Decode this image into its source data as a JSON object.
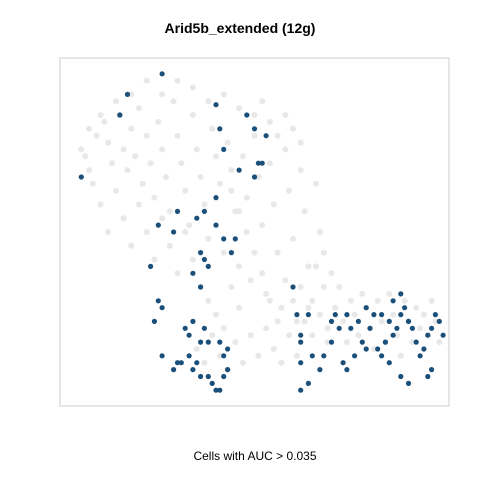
{
  "chart_data": {
    "type": "scatter",
    "title": "Arid5b_extended (12g)",
    "xlabel": "Cells with AUC > 0.035",
    "ylabel": "",
    "xlim": [
      0,
      100
    ],
    "ylim": [
      0,
      100
    ],
    "grid": false,
    "colors": {
      "background_cells": "#e8e8e8",
      "highlighted_cells": "#1a4f7a",
      "frame": "#cccccc"
    },
    "series": [
      {
        "points": [
          [
            6,
            72
          ],
          [
            9,
            78
          ],
          [
            11,
            82
          ],
          [
            12,
            76
          ],
          [
            13,
            70
          ],
          [
            15,
            84
          ],
          [
            16,
            74
          ],
          [
            17,
            68
          ],
          [
            18,
            80
          ],
          [
            19,
            72
          ],
          [
            20,
            86
          ],
          [
            21,
            64
          ],
          [
            22,
            78
          ],
          [
            23,
            70
          ],
          [
            24,
            60
          ],
          [
            25,
            82
          ],
          [
            26,
            74
          ],
          [
            27,
            66
          ],
          [
            28,
            56
          ],
          [
            29,
            88
          ],
          [
            30,
            78
          ],
          [
            31,
            70
          ],
          [
            32,
            62
          ],
          [
            33,
            52
          ],
          [
            34,
            84
          ],
          [
            35,
            74
          ],
          [
            36,
            66
          ],
          [
            37,
            58
          ],
          [
            38,
            48
          ],
          [
            39,
            80
          ],
          [
            40,
            72
          ],
          [
            41,
            64
          ],
          [
            42,
            44
          ],
          [
            43,
            76
          ],
          [
            44,
            68
          ],
          [
            45,
            56
          ],
          [
            46,
            40
          ],
          [
            47,
            72
          ],
          [
            48,
            60
          ],
          [
            49,
            36
          ],
          [
            50,
            78
          ],
          [
            51,
            66
          ],
          [
            52,
            52
          ],
          [
            53,
            32
          ],
          [
            54,
            70
          ],
          [
            55,
            58
          ],
          [
            56,
            44
          ],
          [
            57,
            28
          ],
          [
            58,
            74
          ],
          [
            59,
            62
          ],
          [
            60,
            48
          ],
          [
            61,
            24
          ],
          [
            62,
            68
          ],
          [
            63,
            56
          ],
          [
            64,
            40
          ],
          [
            65,
            20
          ],
          [
            66,
            64
          ],
          [
            67,
            50
          ],
          [
            68,
            34
          ],
          [
            69,
            18
          ],
          [
            8,
            64
          ],
          [
            10,
            58
          ],
          [
            12,
            50
          ],
          [
            14,
            62
          ],
          [
            16,
            54
          ],
          [
            18,
            46
          ],
          [
            20,
            58
          ],
          [
            22,
            50
          ],
          [
            24,
            42
          ],
          [
            26,
            54
          ],
          [
            28,
            46
          ],
          [
            30,
            38
          ],
          [
            32,
            50
          ],
          [
            34,
            42
          ],
          [
            36,
            34
          ],
          [
            38,
            30
          ],
          [
            40,
            26
          ],
          [
            42,
            22
          ],
          [
            44,
            34
          ],
          [
            46,
            28
          ],
          [
            35,
            16
          ],
          [
            37,
            12
          ],
          [
            39,
            20
          ],
          [
            41,
            14
          ],
          [
            43,
            10
          ],
          [
            45,
            18
          ],
          [
            47,
            12
          ],
          [
            49,
            20
          ],
          [
            51,
            14
          ],
          [
            53,
            22
          ],
          [
            55,
            16
          ],
          [
            57,
            12
          ],
          [
            59,
            20
          ],
          [
            61,
            14
          ],
          [
            63,
            24
          ],
          [
            65,
            30
          ],
          [
            67,
            26
          ],
          [
            69,
            22
          ],
          [
            71,
            28
          ],
          [
            72,
            34
          ],
          [
            73,
            24
          ],
          [
            74,
            18
          ],
          [
            75,
            30
          ],
          [
            76,
            26
          ],
          [
            77,
            20
          ],
          [
            78,
            32
          ],
          [
            79,
            28
          ],
          [
            80,
            22
          ],
          [
            81,
            16
          ],
          [
            82,
            30
          ],
          [
            83,
            24
          ],
          [
            84,
            18
          ],
          [
            85,
            32
          ],
          [
            86,
            26
          ],
          [
            87,
            20
          ],
          [
            88,
            14
          ],
          [
            89,
            30
          ],
          [
            90,
            24
          ],
          [
            91,
            18
          ],
          [
            92,
            28
          ],
          [
            93,
            22
          ],
          [
            94,
            26
          ],
          [
            95,
            20
          ],
          [
            96,
            30
          ],
          [
            97,
            24
          ],
          [
            98,
            18
          ],
          [
            44,
            62
          ],
          [
            46,
            56
          ],
          [
            48,
            50
          ],
          [
            50,
            44
          ],
          [
            52,
            38
          ],
          [
            54,
            30
          ],
          [
            56,
            24
          ],
          [
            58,
            36
          ],
          [
            60,
            30
          ],
          [
            62,
            34
          ],
          [
            64,
            28
          ],
          [
            66,
            40
          ],
          [
            68,
            44
          ],
          [
            70,
            38
          ],
          [
            18,
            90
          ],
          [
            22,
            94
          ],
          [
            26,
            90
          ],
          [
            30,
            94
          ],
          [
            34,
            92
          ],
          [
            38,
            88
          ],
          [
            42,
            90
          ],
          [
            46,
            86
          ],
          [
            50,
            84
          ],
          [
            52,
            88
          ],
          [
            54,
            82
          ],
          [
            56,
            78
          ],
          [
            58,
            84
          ],
          [
            60,
            80
          ],
          [
            62,
            76
          ],
          [
            14,
            88
          ],
          [
            10,
            84
          ],
          [
            7,
            80
          ],
          [
            5,
            74
          ],
          [
            7,
            68
          ]
        ]
      },
      {
        "points": [
          [
            26,
            96
          ],
          [
            17,
            90
          ],
          [
            15,
            84
          ],
          [
            5,
            66
          ],
          [
            40,
            87
          ],
          [
            41,
            80
          ],
          [
            42,
            74
          ],
          [
            48,
            84
          ],
          [
            50,
            80
          ],
          [
            53,
            78
          ],
          [
            52,
            70
          ],
          [
            50,
            66
          ],
          [
            51,
            70
          ],
          [
            46,
            68
          ],
          [
            40,
            60
          ],
          [
            37,
            56
          ],
          [
            35,
            54
          ],
          [
            30,
            56
          ],
          [
            25,
            52
          ],
          [
            29,
            50
          ],
          [
            40,
            52
          ],
          [
            42,
            48
          ],
          [
            45,
            48
          ],
          [
            44,
            44
          ],
          [
            36,
            44
          ],
          [
            37,
            42
          ],
          [
            38,
            40
          ],
          [
            23,
            40
          ],
          [
            34,
            38
          ],
          [
            36,
            34
          ],
          [
            25,
            30
          ],
          [
            26,
            28
          ],
          [
            24,
            24
          ],
          [
            34,
            24
          ],
          [
            33,
            20
          ],
          [
            32,
            22
          ],
          [
            37,
            22
          ],
          [
            36,
            18
          ],
          [
            38,
            18
          ],
          [
            43,
            16
          ],
          [
            41,
            18
          ],
          [
            42,
            14
          ],
          [
            33,
            14
          ],
          [
            30,
            12
          ],
          [
            35,
            12
          ],
          [
            36,
            8
          ],
          [
            38,
            8
          ],
          [
            34,
            10
          ],
          [
            43,
            10
          ],
          [
            42,
            8
          ],
          [
            40,
            4
          ],
          [
            39,
            6
          ],
          [
            41,
            4
          ],
          [
            26,
            14
          ],
          [
            31,
            12
          ],
          [
            29,
            10
          ],
          [
            60,
            34
          ],
          [
            61,
            26
          ],
          [
            62,
            20
          ],
          [
            62,
            18
          ],
          [
            65,
            14
          ],
          [
            67,
            10
          ],
          [
            68,
            14
          ],
          [
            70,
            18
          ],
          [
            73,
            12
          ],
          [
            74,
            10
          ],
          [
            76,
            14
          ],
          [
            77,
            24
          ],
          [
            79,
            28
          ],
          [
            80,
            22
          ],
          [
            82,
            16
          ],
          [
            83,
            14
          ],
          [
            84,
            18
          ],
          [
            86,
            20
          ],
          [
            87,
            22
          ],
          [
            88,
            26
          ],
          [
            89,
            28
          ],
          [
            90,
            24
          ],
          [
            91,
            22
          ],
          [
            92,
            18
          ],
          [
            93,
            14
          ],
          [
            94,
            16
          ],
          [
            95,
            20
          ],
          [
            96,
            22
          ],
          [
            97,
            26
          ],
          [
            98,
            24
          ],
          [
            99,
            20
          ],
          [
            96,
            10
          ],
          [
            95,
            8
          ],
          [
            86,
            30
          ],
          [
            88,
            32
          ],
          [
            85,
            12
          ],
          [
            88,
            8
          ],
          [
            90,
            6
          ],
          [
            62,
            12
          ],
          [
            64,
            6
          ],
          [
            62,
            4
          ],
          [
            75,
            22
          ],
          [
            71,
            26
          ],
          [
            70,
            24
          ],
          [
            72,
            22
          ],
          [
            74,
            26
          ],
          [
            78,
            18
          ],
          [
            79,
            16
          ],
          [
            81,
            26
          ],
          [
            83,
            26
          ],
          [
            85,
            24
          ],
          [
            64,
            26
          ]
        ]
      }
    ]
  }
}
